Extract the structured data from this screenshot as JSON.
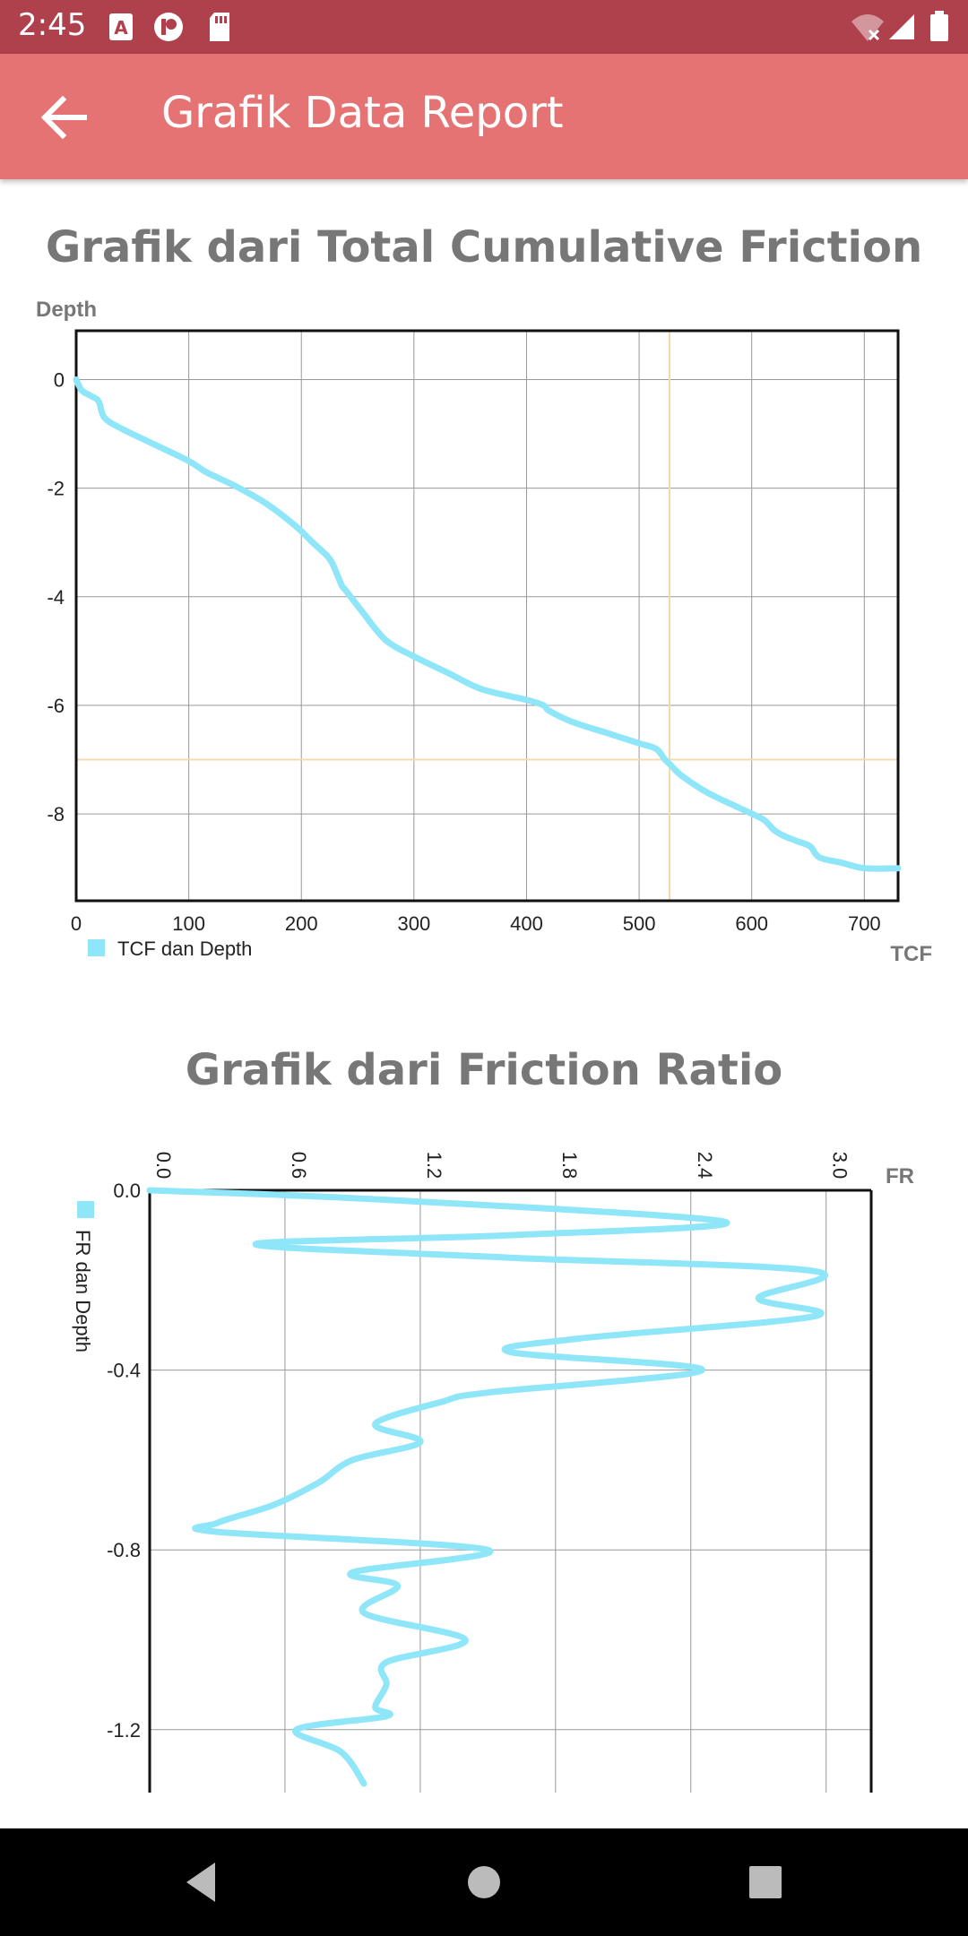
{
  "status_bar": {
    "time": "2:45",
    "icons": [
      "a-icon",
      "circle-p-icon",
      "sd-card-icon",
      "wifi-off-icon",
      "signal-icon",
      "battery-icon"
    ]
  },
  "app_bar": {
    "title": "Grafik Data Report",
    "back_icon": "arrow-back-icon",
    "color": "#e57373"
  },
  "colors": {
    "line": "#8ee6f8",
    "highlight": "#f5d9ad",
    "grid": "#999999",
    "title": "#777777"
  },
  "charts": {
    "tcf": {
      "title": "Grafik dari Total Cumulative Friction",
      "ylabel": "Depth",
      "xlabel": "TCF",
      "legend": "TCF dan Depth",
      "xticks": [
        "0",
        "100",
        "200",
        "300",
        "400",
        "500",
        "600",
        "700"
      ],
      "yticks": [
        "0",
        "-2",
        "-4",
        "-6",
        "-8"
      ]
    },
    "fr": {
      "title": "Grafik dari Friction Ratio",
      "xlabel": "FR",
      "legend": "FR dan Depth",
      "xticks": [
        "0.0",
        "0.6",
        "1.2",
        "1.8",
        "2.4",
        "3.0"
      ],
      "yticks": [
        "0.0",
        "-0.4",
        "-0.8",
        "-1.2"
      ]
    }
  },
  "chart_data": [
    {
      "type": "line",
      "title": "Grafik dari Total Cumulative Friction",
      "xlabel": "TCF",
      "ylabel": "Depth",
      "xlim": [
        0,
        730
      ],
      "ylim": [
        -9.6,
        0.9
      ],
      "grid": true,
      "legend_position": "bottom-left",
      "highlight": {
        "x": 527,
        "y": -7
      },
      "series": [
        {
          "name": "TCF dan Depth",
          "x": [
            0,
            5,
            13,
            20,
            25,
            40,
            70,
            100,
            115,
            125,
            145,
            170,
            195,
            210,
            225,
            232,
            236,
            240,
            255,
            275,
            300,
            330,
            360,
            400,
            415,
            420,
            440,
            470,
            500,
            515,
            523,
            528,
            538,
            560,
            590,
            610,
            620,
            628,
            640,
            652,
            660,
            680,
            700,
            730
          ],
          "y": [
            0,
            -0.2,
            -0.3,
            -0.4,
            -0.7,
            -0.9,
            -1.2,
            -1.5,
            -1.7,
            -1.8,
            -2.0,
            -2.3,
            -2.7,
            -3.0,
            -3.3,
            -3.6,
            -3.8,
            -3.9,
            -4.3,
            -4.8,
            -5.1,
            -5.4,
            -5.7,
            -5.9,
            -6.0,
            -6.1,
            -6.3,
            -6.5,
            -6.7,
            -6.8,
            -7.0,
            -7.1,
            -7.3,
            -7.6,
            -7.9,
            -8.1,
            -8.3,
            -8.4,
            -8.5,
            -8.6,
            -8.8,
            -8.9,
            -9.0,
            -9.0
          ]
        }
      ]
    },
    {
      "type": "line",
      "title": "Grafik dari Friction Ratio",
      "xlabel": "FR",
      "xlim": [
        0,
        3.2
      ],
      "ylim": [
        -1.34,
        0
      ],
      "grid": true,
      "legend_position": "left",
      "highlight": {
        "x": 0
      },
      "series": [
        {
          "name": "FR dan Depth",
          "x": [
            0,
            1.0,
            2.55,
            1.6,
            0.47,
            1.6,
            2.95,
            2.7,
            2.95,
            1.9,
            1.6,
            2.45,
            1.5,
            1.3,
            1.0,
            1.2,
            0.9,
            0.75,
            0.55,
            0.3,
            0.3,
            1.5,
            0.9,
            1.1,
            0.95,
            1.4,
            1.05,
            1.05,
            1.0,
            1.05,
            0.65,
            0.85,
            0.95
          ],
          "y": [
            0,
            -0.02,
            -0.07,
            -0.1,
            -0.12,
            -0.15,
            -0.18,
            -0.24,
            -0.28,
            -0.33,
            -0.36,
            -0.4,
            -0.45,
            -0.47,
            -0.52,
            -0.56,
            -0.6,
            -0.65,
            -0.7,
            -0.74,
            -0.76,
            -0.8,
            -0.85,
            -0.88,
            -0.94,
            -1.0,
            -1.05,
            -1.1,
            -1.15,
            -1.17,
            -1.2,
            -1.25,
            -1.32
          ]
        }
      ]
    }
  ],
  "nav_bar": {
    "back": "nav-back-icon",
    "home": "nav-home-icon",
    "recents": "nav-recents-icon"
  }
}
